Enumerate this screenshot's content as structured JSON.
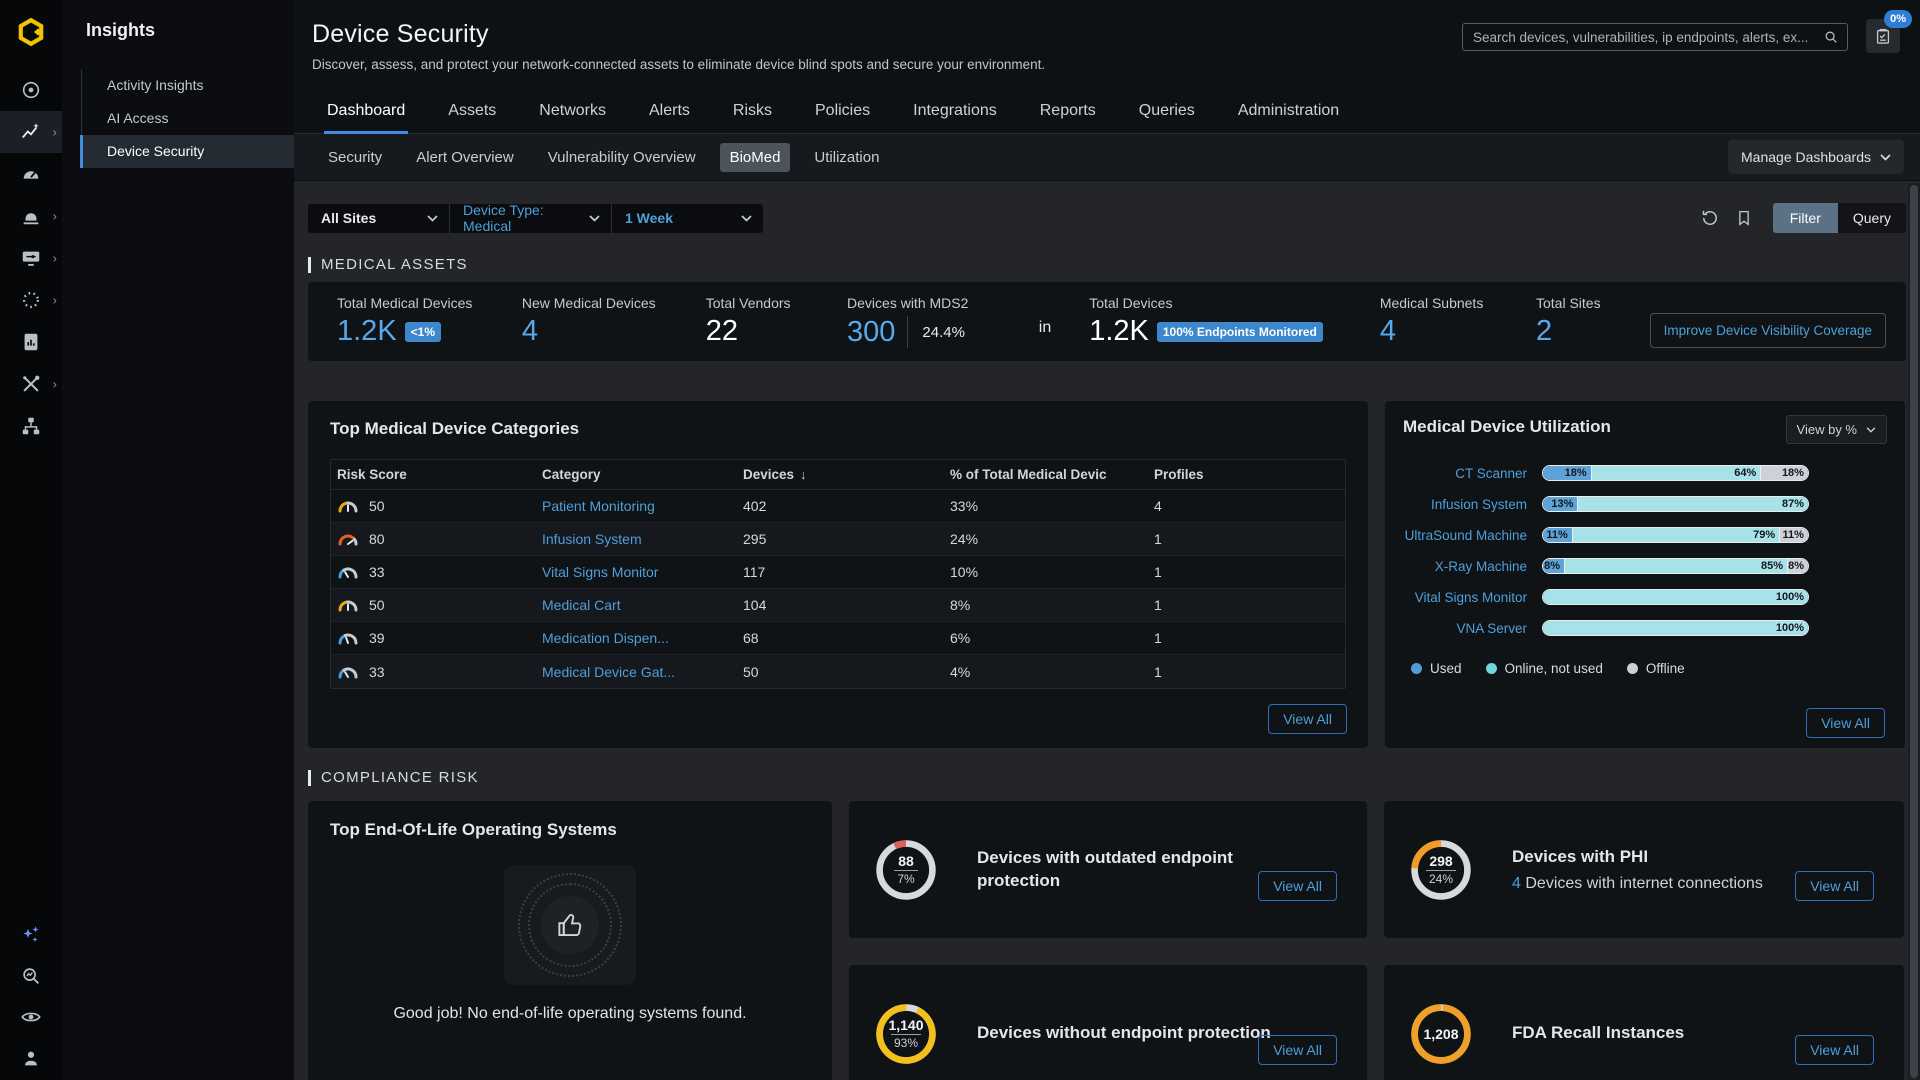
{
  "colors": {
    "accent_blue": "#3f8cdf",
    "link_blue": "#4f9fd9",
    "stat_blue": "#57a9ec",
    "badge_blue": "#3d87cc",
    "donut_track": "#d6dadd",
    "logo_yellow": "#f2c300"
  },
  "rail": {
    "icons": [
      "radar",
      "insights",
      "dashboard-gauge",
      "alarm",
      "policy-monitor",
      "process-circle",
      "reports",
      "tools",
      "network-sitemap"
    ],
    "active_icon": "insights",
    "bottom_icons": [
      "ai-sparkles",
      "investigate-search",
      "visibility-eye",
      "user-profile"
    ]
  },
  "nav_panel": {
    "title": "Insights",
    "items": [
      {
        "label": "Activity Insights"
      },
      {
        "label": "AI Access"
      },
      {
        "label": "Device Security"
      }
    ],
    "active_item": "Device Security"
  },
  "header": {
    "title": "Device Security",
    "subtitle": "Discover, assess, and protect your network-connected assets to eliminate device blind spots and secure your environment.",
    "search_placeholder": "Search devices, vulnerabilities, ip endpoints, alerts, ex...",
    "tasks_badge": "0%"
  },
  "tabs": [
    "Dashboard",
    "Assets",
    "Networks",
    "Alerts",
    "Risks",
    "Policies",
    "Integrations",
    "Reports",
    "Queries",
    "Administration"
  ],
  "active_tab": "Dashboard",
  "subtabs": [
    "Security",
    "Alert Overview",
    "Vulnerability Overview",
    "BioMed",
    "Utilization"
  ],
  "active_subtab": "BioMed",
  "manage_dashboards_label": "Manage Dashboards",
  "filters": {
    "site": "All Sites",
    "device_type": "Device Type: Medical",
    "time_range": "1 Week",
    "filter_label": "Filter",
    "query_label": "Query"
  },
  "sections": {
    "medical_assets": "MEDICAL ASSETS",
    "compliance_risk": "COMPLIANCE RISK"
  },
  "stats": {
    "total_medical": {
      "label": "Total Medical Devices",
      "value": "1.2K",
      "badge": "<1%"
    },
    "new_medical": {
      "label": "New Medical Devices",
      "value": "4"
    },
    "total_vendors": {
      "label": "Total Vendors",
      "value": "22"
    },
    "mds2": {
      "label": "Devices with MDS2",
      "value": "300",
      "secondary": "24.4%"
    },
    "joiner": "in",
    "total_devices": {
      "label": "Total Devices",
      "value": "1.2K",
      "badge": "100% Endpoints Monitored"
    },
    "medical_subnets": {
      "label": "Medical Subnets",
      "value": "4"
    },
    "total_sites": {
      "label": "Total Sites",
      "value": "2"
    },
    "improve_button": "Improve Device Visibility Coverage"
  },
  "categories_panel": {
    "title": "Top Medical Device Categories",
    "columns": {
      "risk": "Risk Score",
      "category": "Category",
      "devices": "Devices",
      "pct": "% of Total Medical Devic",
      "profiles": "Profiles"
    },
    "sorted_by": "Devices",
    "rows": [
      {
        "score": "50",
        "gauge_color": "#e5aa17",
        "category": "Patient Monitoring",
        "devices": "402",
        "pct": "33%",
        "profiles": "4"
      },
      {
        "score": "80",
        "gauge_color": "#e06321",
        "category": "Infusion System",
        "devices": "295",
        "pct": "24%",
        "profiles": "1"
      },
      {
        "score": "33",
        "gauge_color": "#4a9fd9",
        "category": "Vital Signs Monitor",
        "devices": "117",
        "pct": "10%",
        "profiles": "1"
      },
      {
        "score": "50",
        "gauge_color": "#e5aa17",
        "category": "Medical Cart",
        "devices": "104",
        "pct": "8%",
        "profiles": "1"
      },
      {
        "score": "39",
        "gauge_color": "#4a9fd9",
        "category": "Medication Dispen...",
        "devices": "68",
        "pct": "6%",
        "profiles": "1"
      },
      {
        "score": "33",
        "gauge_color": "#4a9fd9",
        "category": "Medical Device Gat...",
        "devices": "50",
        "pct": "4%",
        "profiles": "1"
      }
    ],
    "view_all": "View All"
  },
  "utilization_panel": {
    "title": "Medical Device Utilization",
    "view_by": "View by %",
    "chart_data": {
      "type": "stacked-bar-horizontal",
      "unit": "%",
      "categories": [
        "CT Scanner",
        "Infusion System",
        "UltraSound Machine",
        "X-Ray Machine",
        "Vital Signs Monitor",
        "VNA Server"
      ],
      "series": [
        {
          "name": "Used",
          "color": "#5ea3d7",
          "values": [
            18,
            13,
            11,
            8,
            0,
            0
          ]
        },
        {
          "name": "Online, not used",
          "color": "#a8e2e9",
          "values": [
            64,
            87,
            79,
            85,
            100,
            100
          ]
        },
        {
          "name": "Offline",
          "color": "#ccd2d8",
          "values": [
            18,
            0,
            11,
            8,
            0,
            0
          ]
        }
      ]
    },
    "legend": [
      {
        "label": "Used",
        "color": "#4e9ed6"
      },
      {
        "label": "Online, not used",
        "color": "#6ed6de"
      },
      {
        "label": "Offline",
        "color": "#c9d0d7"
      }
    ],
    "view_all": "View All"
  },
  "compliance": {
    "eol_card": {
      "title": "Top End-Of-Life Operating Systems",
      "message": "Good job! No end-of-life operating systems found."
    },
    "outdated_card": {
      "title": "Devices with outdated endpoint protection",
      "donut": {
        "value": "88",
        "pct": "7%",
        "pct_num": 7,
        "color": "#e0605e"
      },
      "view_all": "View All"
    },
    "phi_card": {
      "title": "Devices with PHI",
      "sub_value": "4",
      "sub_text": "Devices with internet connections",
      "donut": {
        "value": "298",
        "pct": "24%",
        "pct_num": 24,
        "color": "#f09c26"
      },
      "view_all": "View All"
    },
    "no_protection_card": {
      "title": "Devices without endpoint protection",
      "donut": {
        "value": "1,140",
        "pct": "93%",
        "pct_num": 93,
        "color": "#f3bf1b"
      },
      "view_all": "View All"
    },
    "fda_card": {
      "title": "FDA Recall Instances",
      "donut": {
        "value": "1,208",
        "pct_num": 99,
        "color": "#f0a028"
      },
      "view_all": "View All"
    }
  }
}
